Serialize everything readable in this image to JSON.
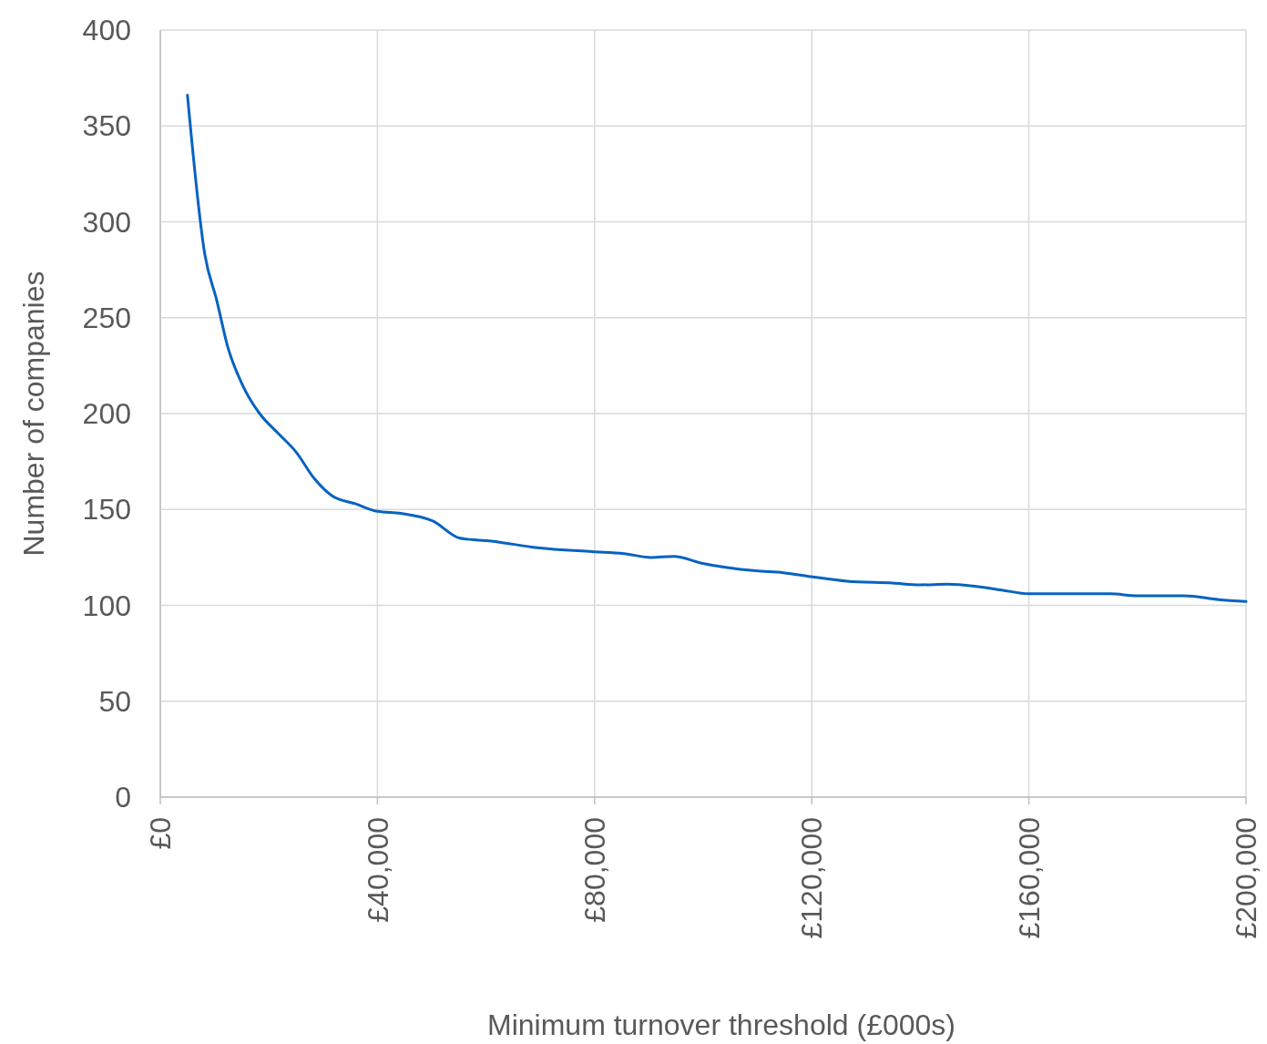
{
  "chart_data": {
    "type": "line",
    "xlabel": "Minimum turnover threshold (£000s)",
    "ylabel": "Number of companies",
    "xlim": [
      0,
      200000
    ],
    "xticks": [
      {
        "value": 0,
        "label": "£0"
      },
      {
        "value": 40000,
        "label": "£40,000"
      },
      {
        "value": 80000,
        "label": "£80,000"
      },
      {
        "value": 120000,
        "label": "£120,000"
      },
      {
        "value": 160000,
        "label": "£160,000"
      },
      {
        "value": 200000,
        "label": "£200,000"
      }
    ],
    "ylim": [
      0,
      400
    ],
    "yticks": [
      0,
      50,
      100,
      150,
      200,
      250,
      300,
      350,
      400
    ],
    "grid": true,
    "marker": "none",
    "line_style": "solid",
    "series": [
      {
        "color": "#0563c1",
        "x": [
          5000,
          8200,
          10400,
          12400,
          15300,
          18300,
          21600,
          25000,
          28400,
          31700,
          35900,
          40000,
          44300,
          50200,
          55200,
          61000,
          69500,
          79500,
          85400,
          90400,
          94600,
          99700,
          109700,
          114800,
          119800,
          126500,
          134900,
          140000,
          145000,
          150000,
          155000,
          160000,
          165000,
          175000,
          180000,
          188600,
          195000,
          200000
        ],
        "values": [
          366,
          283,
          259,
          235,
          214,
          200,
          190,
          180,
          166,
          157,
          153,
          149,
          148,
          144,
          135,
          133.5,
          130,
          128,
          127,
          125,
          125.5,
          122,
          118,
          117,
          115,
          112.6,
          111.6,
          110.7,
          111,
          110,
          108,
          106,
          106,
          106,
          105,
          105,
          103,
          102
        ]
      }
    ]
  }
}
